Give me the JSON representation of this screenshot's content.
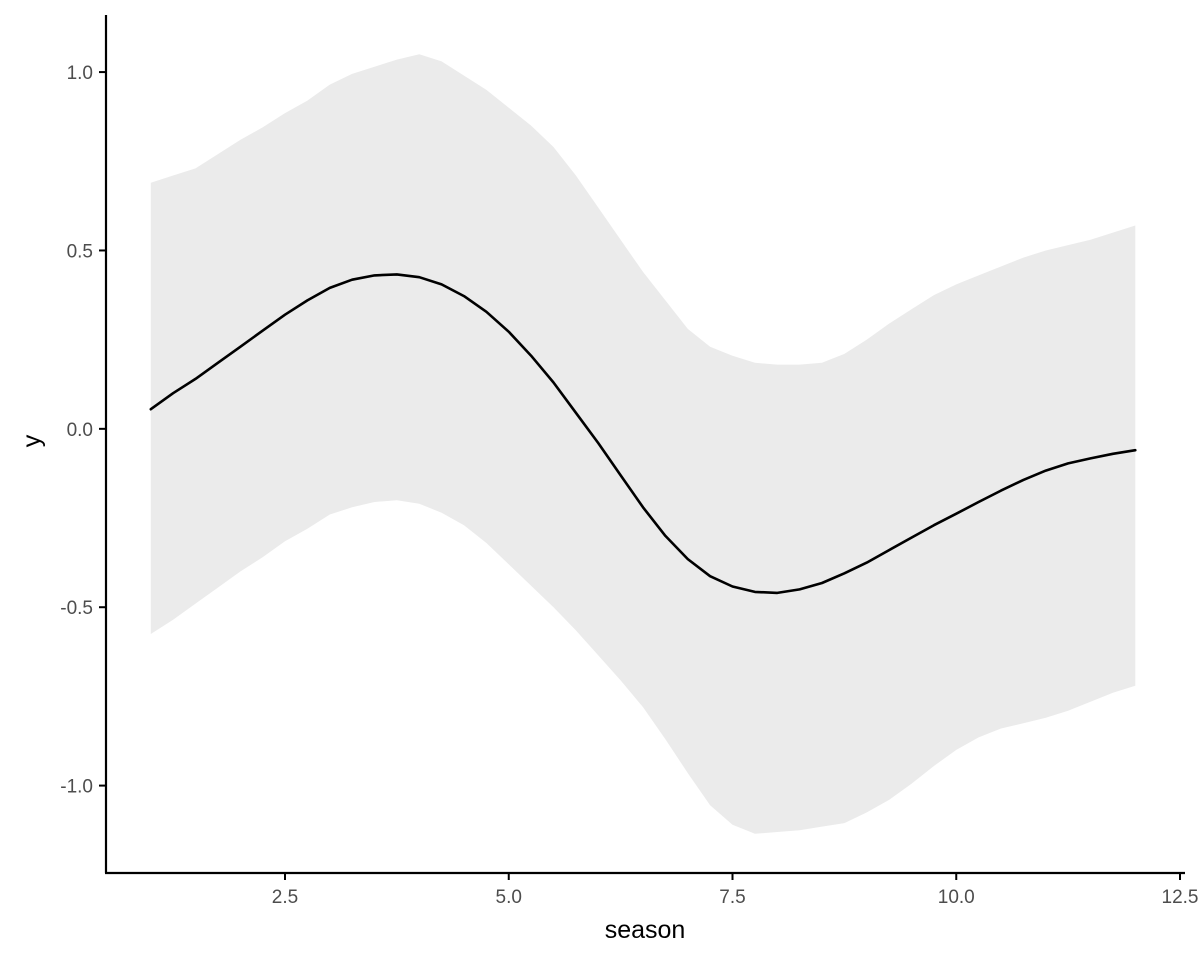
{
  "chart_data": {
    "type": "line",
    "title": "",
    "xlabel": "season",
    "ylabel": "y",
    "xlim": [
      0.5,
      12.5
    ],
    "ylim": [
      -1.245,
      1.16
    ],
    "grid": false,
    "x_ticks": [
      2.5,
      5.0,
      7.5,
      10.0,
      12.5
    ],
    "x_tick_labels": [
      "2.5",
      "5.0",
      "7.5",
      "10.0",
      "12.5"
    ],
    "y_ticks": [
      -1.0,
      -0.5,
      0.0,
      0.5,
      1.0
    ],
    "y_tick_labels": [
      "-1.0",
      "-0.5",
      "0.0",
      "0.5",
      "1.0"
    ],
    "series": [
      {
        "type": "line",
        "color": "#000000",
        "x": [
          1.0,
          1.25,
          1.5,
          1.75,
          2.0,
          2.25,
          2.5,
          2.75,
          3.0,
          3.25,
          3.5,
          3.75,
          4.0,
          4.25,
          4.5,
          4.75,
          5.0,
          5.25,
          5.5,
          5.75,
          6.0,
          6.25,
          6.5,
          6.75,
          7.0,
          7.25,
          7.5,
          7.75,
          8.0,
          8.25,
          8.5,
          8.75,
          9.0,
          9.25,
          9.5,
          9.75,
          10.0,
          10.25,
          10.5,
          10.75,
          11.0,
          11.25,
          11.5,
          11.75,
          12.0
        ],
        "y": [
          0.055,
          0.1,
          0.14,
          0.185,
          0.23,
          0.275,
          0.32,
          0.36,
          0.395,
          0.418,
          0.43,
          0.433,
          0.425,
          0.405,
          0.372,
          0.328,
          0.272,
          0.205,
          0.13,
          0.045,
          -0.04,
          -0.13,
          -0.22,
          -0.3,
          -0.365,
          -0.413,
          -0.442,
          -0.457,
          -0.46,
          -0.45,
          -0.432,
          -0.405,
          -0.375,
          -0.34,
          -0.305,
          -0.27,
          -0.238,
          -0.205,
          -0.173,
          -0.143,
          -0.117,
          -0.097,
          -0.083,
          -0.07,
          -0.06
        ]
      }
    ],
    "ribbon": {
      "color": "#ebebeb",
      "x": [
        1.0,
        1.25,
        1.5,
        1.75,
        2.0,
        2.25,
        2.5,
        2.75,
        3.0,
        3.25,
        3.5,
        3.75,
        4.0,
        4.25,
        4.5,
        4.75,
        5.0,
        5.25,
        5.5,
        5.75,
        6.0,
        6.25,
        6.5,
        6.75,
        7.0,
        7.25,
        7.5,
        7.75,
        8.0,
        8.25,
        8.5,
        8.75,
        9.0,
        9.25,
        9.5,
        9.75,
        10.0,
        10.25,
        10.5,
        10.75,
        11.0,
        11.25,
        11.5,
        11.75,
        12.0
      ],
      "upper": [
        0.69,
        0.71,
        0.73,
        0.77,
        0.81,
        0.845,
        0.885,
        0.92,
        0.965,
        0.995,
        1.015,
        1.035,
        1.05,
        1.03,
        0.99,
        0.95,
        0.9,
        0.85,
        0.79,
        0.71,
        0.62,
        0.53,
        0.44,
        0.36,
        0.28,
        0.23,
        0.205,
        0.185,
        0.18,
        0.18,
        0.185,
        0.21,
        0.25,
        0.295,
        0.335,
        0.375,
        0.405,
        0.43,
        0.455,
        0.48,
        0.5,
        0.515,
        0.53,
        0.55,
        0.57
      ],
      "lower": [
        -0.575,
        -0.535,
        -0.49,
        -0.445,
        -0.4,
        -0.36,
        -0.315,
        -0.28,
        -0.24,
        -0.22,
        -0.205,
        -0.2,
        -0.21,
        -0.235,
        -0.27,
        -0.32,
        -0.38,
        -0.44,
        -0.5,
        -0.565,
        -0.635,
        -0.705,
        -0.78,
        -0.87,
        -0.965,
        -1.055,
        -1.11,
        -1.135,
        -1.13,
        -1.125,
        -1.115,
        -1.105,
        -1.075,
        -1.04,
        -0.995,
        -0.945,
        -0.9,
        -0.865,
        -0.84,
        -0.825,
        -0.81,
        -0.79,
        -0.765,
        -0.74,
        -0.72
      ]
    }
  }
}
